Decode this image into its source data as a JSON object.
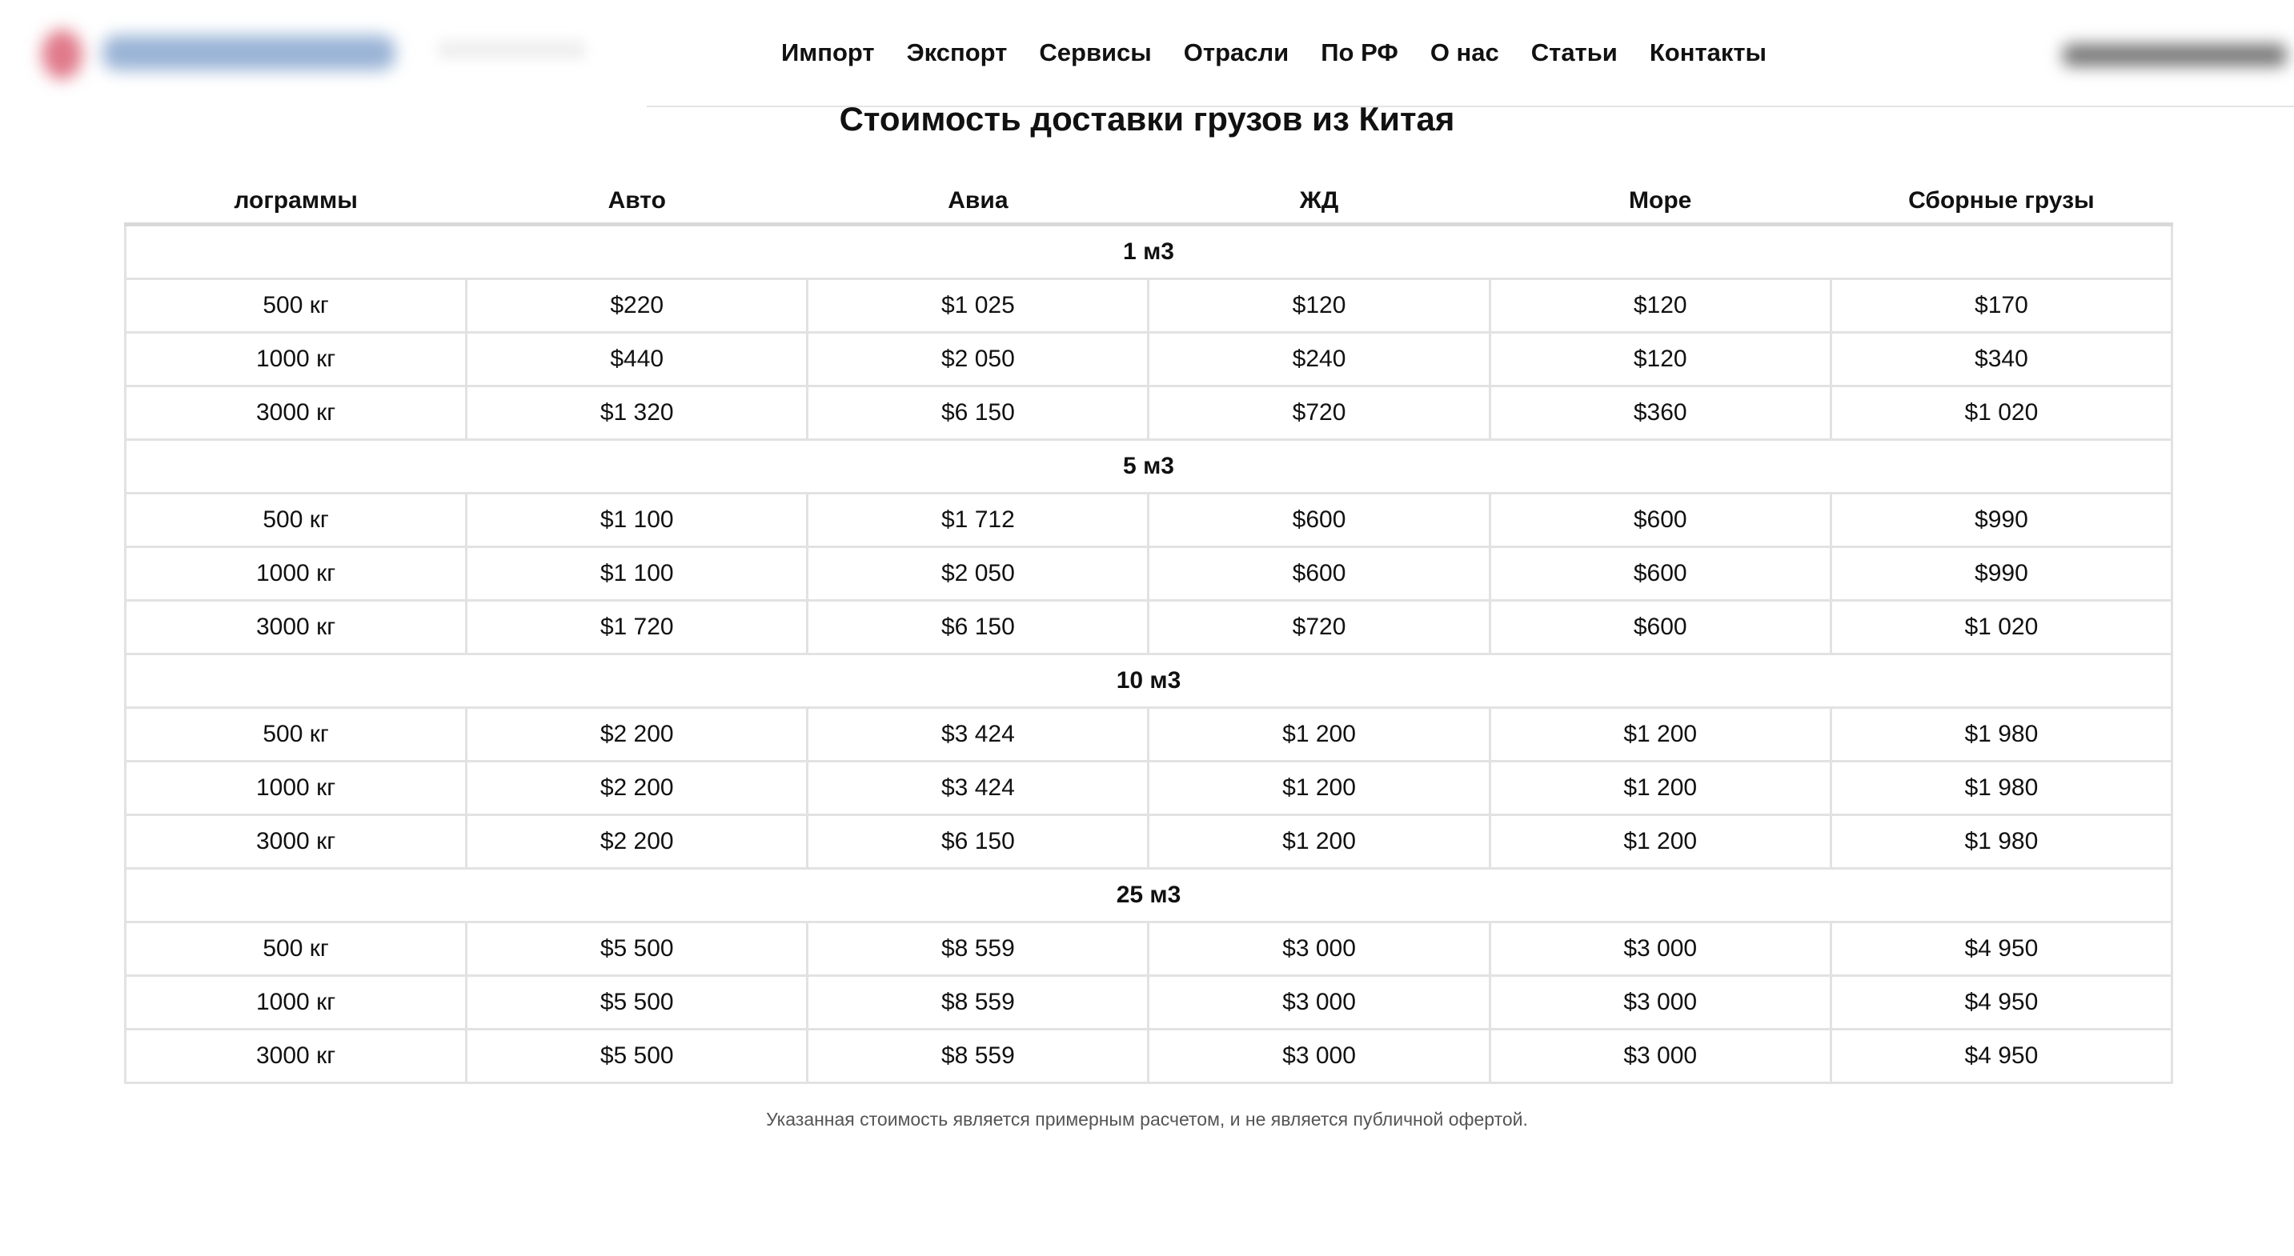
{
  "header": {
    "nav": [
      "Импорт",
      "Экспорт",
      "Сервисы",
      "Отрасли",
      "По РФ",
      "О нас",
      "Статьи",
      "Контакты"
    ]
  },
  "page_title": "Стоимость доставки грузов из Китая",
  "table": {
    "columns": [
      "лограммы",
      "Авто",
      "Авиа",
      "ЖД",
      "Море",
      "Сборные грузы"
    ],
    "groups": [
      {
        "label": "1 м3",
        "rows": [
          [
            "500 кг",
            "$220",
            "$1 025",
            "$120",
            "$120",
            "$170"
          ],
          [
            "1000 кг",
            "$440",
            "$2 050",
            "$240",
            "$120",
            "$340"
          ],
          [
            "3000 кг",
            "$1 320",
            "$6 150",
            "$720",
            "$360",
            "$1 020"
          ]
        ]
      },
      {
        "label": "5 м3",
        "rows": [
          [
            "500 кг",
            "$1 100",
            "$1 712",
            "$600",
            "$600",
            "$990"
          ],
          [
            "1000 кг",
            "$1 100",
            "$2 050",
            "$600",
            "$600",
            "$990"
          ],
          [
            "3000 кг",
            "$1 720",
            "$6 150",
            "$720",
            "$600",
            "$1 020"
          ]
        ]
      },
      {
        "label": "10 м3",
        "rows": [
          [
            "500 кг",
            "$2 200",
            "$3 424",
            "$1 200",
            "$1 200",
            "$1 980"
          ],
          [
            "1000 кг",
            "$2 200",
            "$3 424",
            "$1 200",
            "$1 200",
            "$1 980"
          ],
          [
            "3000 кг",
            "$2 200",
            "$6 150",
            "$1 200",
            "$1 200",
            "$1 980"
          ]
        ]
      },
      {
        "label": "25 м3",
        "rows": [
          [
            "500 кг",
            "$5 500",
            "$8 559",
            "$3 000",
            "$3 000",
            "$4 950"
          ],
          [
            "1000 кг",
            "$5 500",
            "$8 559",
            "$3 000",
            "$3 000",
            "$4 950"
          ],
          [
            "3000 кг",
            "$5 500",
            "$8 559",
            "$3 000",
            "$3 000",
            "$4 950"
          ]
        ]
      }
    ]
  },
  "note": "Указанная стоимость является примерным расчетом, и не является публичной офертой."
}
